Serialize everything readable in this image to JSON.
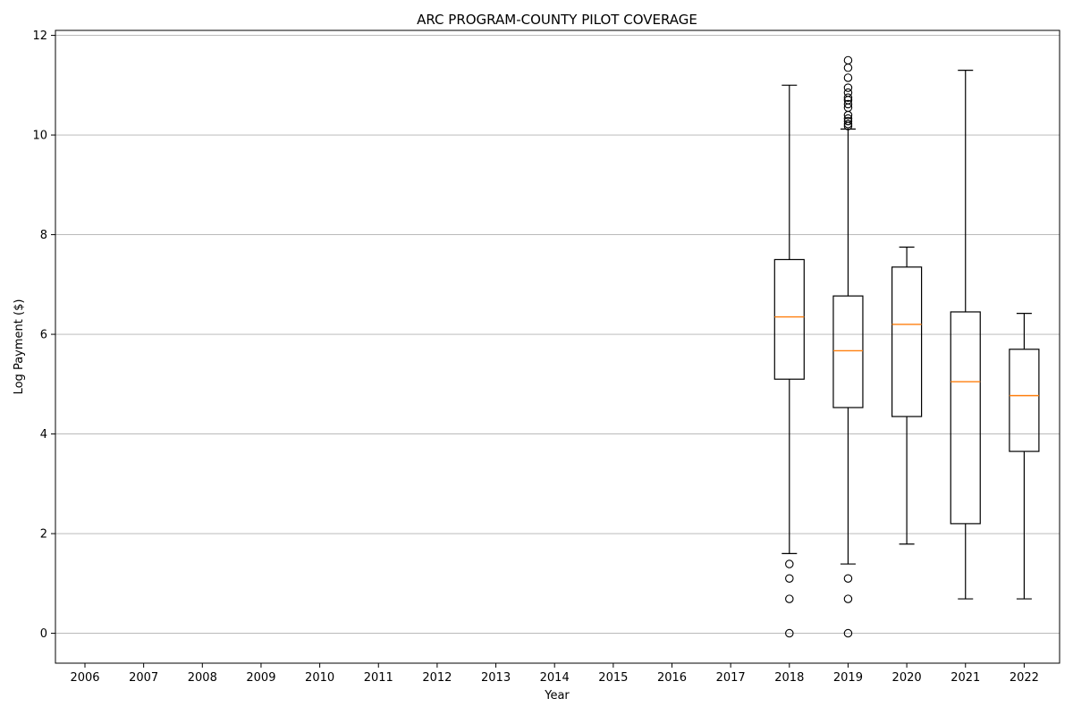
{
  "chart_data": {
    "type": "box",
    "title": "ARC PROGRAM-COUNTY PILOT COVERAGE",
    "xlabel": "Year",
    "ylabel": "Log Payment ($)",
    "ylim": [
      -0.6,
      12.1
    ],
    "yticks": [
      "0",
      "2",
      "4",
      "6",
      "8",
      "10",
      "12"
    ],
    "ytick_values": [
      0,
      2,
      4,
      6,
      8,
      10,
      12
    ],
    "categories": [
      "2006",
      "2007",
      "2008",
      "2009",
      "2010",
      "2011",
      "2012",
      "2013",
      "2014",
      "2015",
      "2016",
      "2017",
      "2018",
      "2019",
      "2020",
      "2021",
      "2022"
    ],
    "grid": "horizontal",
    "boxes": [
      {
        "category": "2018",
        "whisker_low": 1.6,
        "q1": 5.1,
        "median": 6.35,
        "q3": 7.5,
        "whisker_high": 11.0,
        "fliers": [
          1.39,
          1.1,
          0.69,
          0.0
        ]
      },
      {
        "category": "2019",
        "whisker_low": 1.39,
        "q1": 4.53,
        "median": 5.67,
        "q3": 6.77,
        "whisker_high": 10.12,
        "fliers": [
          11.5,
          11.35,
          11.15,
          10.95,
          10.85,
          10.75,
          10.7,
          10.62,
          10.55,
          10.4,
          10.33,
          10.28,
          10.22,
          10.18,
          1.1,
          0.69,
          0.0
        ]
      },
      {
        "category": "2020",
        "whisker_low": 1.79,
        "q1": 4.35,
        "median": 6.2,
        "q3": 7.35,
        "whisker_high": 7.75,
        "fliers": []
      },
      {
        "category": "2021",
        "whisker_low": 0.69,
        "q1": 2.2,
        "median": 5.05,
        "q3": 6.45,
        "whisker_high": 11.3,
        "fliers": []
      },
      {
        "category": "2022",
        "whisker_low": 0.69,
        "q1": 3.65,
        "median": 4.77,
        "q3": 5.7,
        "whisker_high": 6.42,
        "fliers": []
      }
    ]
  }
}
